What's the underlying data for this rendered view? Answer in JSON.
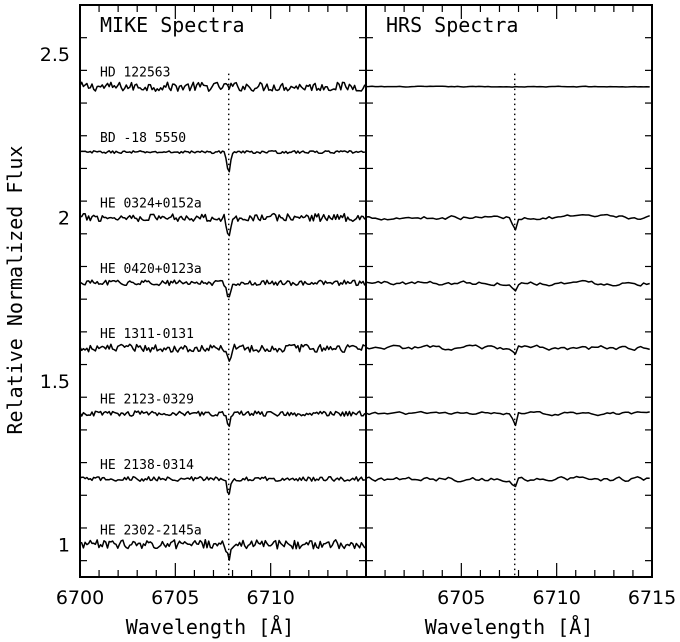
{
  "chart_data": {
    "type": "line",
    "ylabel": "Relative Normalized Flux",
    "ylim": [
      0.9,
      2.65
    ],
    "y_ticks": [
      "1",
      "1.5",
      "2",
      "2.5"
    ],
    "line_marker_wavelength": 6707.8,
    "panels": [
      {
        "title": "MIKE Spectra",
        "xlabel": "Wavelength [Å]",
        "xlim": [
          6700,
          6715
        ],
        "x_ticks": [
          "6700",
          "6705",
          "6710"
        ],
        "series": [
          {
            "name": "HD 122563",
            "offset": 2.4,
            "noise": 0.014,
            "depth": 0.0
          },
          {
            "name": "BD -18 5550",
            "offset": 2.2,
            "noise": 0.004,
            "depth": 0.06
          },
          {
            "name": "HE 0324+0152a",
            "offset": 2.0,
            "noise": 0.012,
            "depth": 0.07
          },
          {
            "name": "HE 0420+0123a",
            "offset": 1.8,
            "noise": 0.008,
            "depth": 0.05
          },
          {
            "name": "HE 1311-0131",
            "offset": 1.6,
            "noise": 0.012,
            "depth": 0.045
          },
          {
            "name": "HE 2123-0329",
            "offset": 1.4,
            "noise": 0.008,
            "depth": 0.04
          },
          {
            "name": "HE 2138-0314",
            "offset": 1.2,
            "noise": 0.007,
            "depth": 0.045
          },
          {
            "name": "HE 2302-2145a",
            "offset": 1.0,
            "noise": 0.014,
            "depth": 0.04
          }
        ]
      },
      {
        "title": "HRS Spectra",
        "xlabel": "Wavelength [Å]",
        "xlim": [
          6700,
          6715
        ],
        "x_ticks": [
          "6705",
          "6710",
          "6715"
        ],
        "series": [
          {
            "offset": 2.4,
            "noise": 0.0015,
            "depth": 0.0
          },
          {
            "offset": 2.0,
            "noise": 0.008,
            "depth": 0.045
          },
          {
            "offset": 1.8,
            "noise": 0.009,
            "depth": 0.03
          },
          {
            "offset": 1.6,
            "noise": 0.009,
            "depth": 0.025
          },
          {
            "offset": 1.4,
            "noise": 0.006,
            "depth": 0.045
          },
          {
            "offset": 1.2,
            "noise": 0.009,
            "depth": 0.025
          }
        ]
      }
    ]
  }
}
